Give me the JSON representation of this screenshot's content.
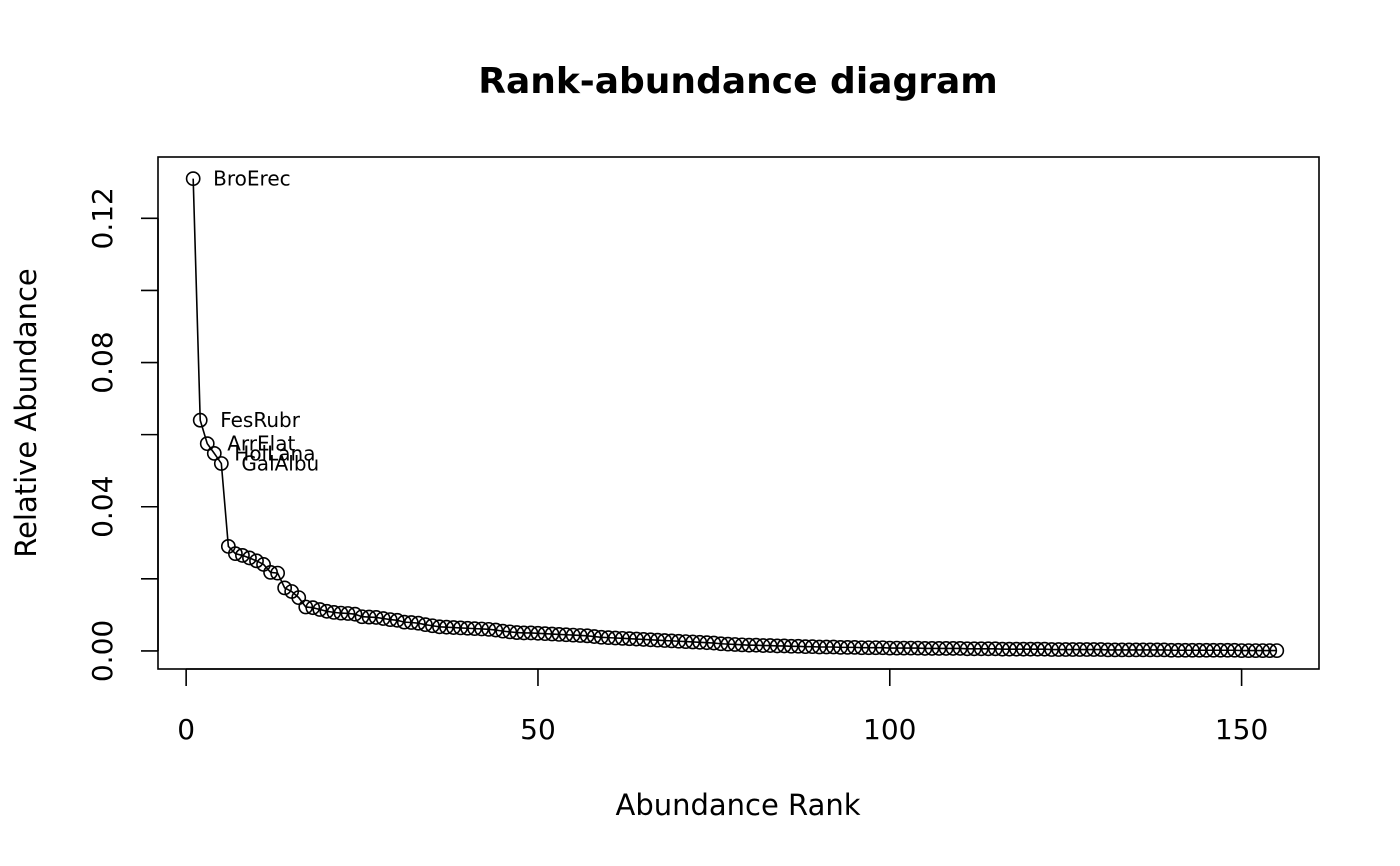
{
  "chart_data": {
    "type": "line",
    "title": "Rank-abundance diagram",
    "xlabel": "Abundance Rank",
    "ylabel": "Relative Abundance",
    "xlim": [
      -4,
      161
    ],
    "ylim": [
      -0.005,
      0.137
    ],
    "x_ticks": [
      0,
      50,
      100,
      150
    ],
    "x_tick_labels": [
      "0",
      "50",
      "100",
      "150"
    ],
    "y_ticks": [
      0.0,
      0.02,
      0.04,
      0.06,
      0.08,
      0.1,
      0.12
    ],
    "y_tick_labels": [
      "0.00",
      "",
      "0.04",
      "",
      "0.08",
      "",
      "0.12"
    ],
    "grid": false,
    "legend": "none",
    "point_style": "open-circle",
    "line_color": "#000000",
    "series": [
      {
        "x_start": 1,
        "values": [
          0.131,
          0.064,
          0.0575,
          0.0548,
          0.052,
          0.029,
          0.027,
          0.0265,
          0.0258,
          0.025,
          0.024,
          0.0218,
          0.0216,
          0.0175,
          0.0165,
          0.0148,
          0.0122,
          0.012,
          0.0115,
          0.011,
          0.0107,
          0.0105,
          0.0104,
          0.0102,
          0.0095,
          0.0094,
          0.0093,
          0.009,
          0.0087,
          0.0085,
          0.008,
          0.0079,
          0.0077,
          0.0073,
          0.007,
          0.0067,
          0.0066,
          0.0065,
          0.0064,
          0.0063,
          0.0062,
          0.0061,
          0.006,
          0.0058,
          0.0055,
          0.0053,
          0.0051,
          0.005,
          0.005,
          0.0049,
          0.0048,
          0.0047,
          0.0046,
          0.0045,
          0.0044,
          0.0043,
          0.0042,
          0.004,
          0.0038,
          0.0037,
          0.0036,
          0.0035,
          0.0034,
          0.0033,
          0.0032,
          0.0031,
          0.003,
          0.0029,
          0.0028,
          0.0027,
          0.0026,
          0.0025,
          0.0024,
          0.0023,
          0.0022,
          0.002,
          0.0019,
          0.0018,
          0.0017,
          0.0016,
          0.0016,
          0.0015,
          0.0015,
          0.0014,
          0.0014,
          0.0013,
          0.0013,
          0.0012,
          0.0012,
          0.0011,
          0.0011,
          0.0011,
          0.001,
          0.001,
          0.001,
          0.0009,
          0.0009,
          0.0009,
          0.0009,
          0.0008,
          0.0008,
          0.0008,
          0.0008,
          0.0008,
          0.0007,
          0.0007,
          0.0007,
          0.0007,
          0.0007,
          0.0007,
          0.0006,
          0.0006,
          0.0006,
          0.0006,
          0.0006,
          0.0005,
          0.0005,
          0.0005,
          0.0005,
          0.0005,
          0.0005,
          0.0005,
          0.0004,
          0.0004,
          0.0004,
          0.0004,
          0.0004,
          0.0004,
          0.0004,
          0.0004,
          0.0003,
          0.0003,
          0.0003,
          0.0003,
          0.0003,
          0.0003,
          0.0003,
          0.0003,
          0.0003,
          0.0002,
          0.0002,
          0.0002,
          0.0002,
          0.0002,
          0.0002,
          0.0002,
          0.0002,
          0.0002,
          0.0002,
          0.0001,
          0.0001,
          0.0001,
          0.0001,
          0.0001,
          0.0001
        ]
      }
    ],
    "annotations": [
      {
        "label": "BroErec",
        "x": 1,
        "y": 0.131
      },
      {
        "label": "FesRubr",
        "x": 2,
        "y": 0.064
      },
      {
        "label": "ArrElat",
        "x": 3,
        "y": 0.0575
      },
      {
        "label": "HolLana",
        "x": 4,
        "y": 0.0548
      },
      {
        "label": "GalAlbu",
        "x": 5,
        "y": 0.052
      }
    ]
  }
}
